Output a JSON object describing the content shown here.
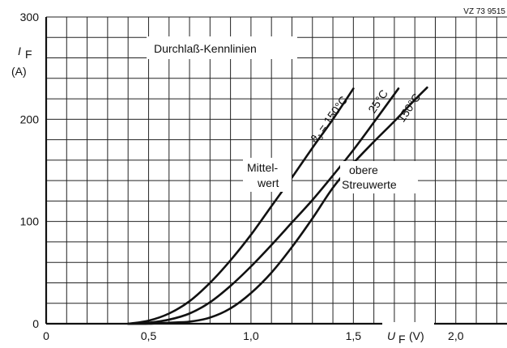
{
  "chart_data": {
    "type": "line",
    "title": "Durchlaß-Kennlinien",
    "figure_ref": "VZ 73 9515",
    "xlabel": {
      "symbol": "U",
      "sub": "F",
      "unit": "(V)"
    },
    "ylabel": {
      "symbol": "I",
      "sub": "F",
      "unit": "(A)"
    },
    "xlim": [
      0,
      2.25
    ],
    "ylim": [
      0,
      300
    ],
    "x_ticks": [
      {
        "value": 0,
        "label": "0"
      },
      {
        "value": 0.5,
        "label": "0,5"
      },
      {
        "value": 1.0,
        "label": "1,0"
      },
      {
        "value": 1.5,
        "label": "1,5"
      },
      {
        "value": 2.0,
        "label": "2,0"
      }
    ],
    "y_ticks": [
      {
        "value": 0,
        "label": "0"
      },
      {
        "value": 100,
        "label": "100"
      },
      {
        "value": 200,
        "label": "200"
      },
      {
        "value": 300,
        "label": "300"
      }
    ],
    "grid": {
      "major": true,
      "x_step": 0.1,
      "y_step": 20
    },
    "series": [
      {
        "key": "mittelwert",
        "x": [
          0.4,
          0.5,
          0.6,
          0.7,
          0.8,
          0.9,
          1.0,
          1.1,
          1.2,
          1.3,
          1.4,
          1.5
        ],
        "y": [
          0,
          3,
          10,
          22,
          40,
          62,
          87,
          115,
          143,
          172,
          200,
          230
        ]
      },
      {
        "key": "obere_25",
        "x": [
          0.4,
          0.5,
          0.6,
          0.7,
          0.8,
          0.9,
          1.0,
          1.1,
          1.2,
          1.3,
          1.4,
          1.5,
          1.6,
          1.72
        ],
        "y": [
          0,
          1,
          4,
          10,
          21,
          37,
          56,
          77,
          99,
          121,
          145,
          170,
          197,
          230
        ]
      },
      {
        "key": "obere_150",
        "x": [
          0.4,
          0.5,
          0.6,
          0.7,
          0.8,
          0.9,
          1.0,
          1.1,
          1.2,
          1.3,
          1.4,
          1.5,
          1.6,
          1.7,
          1.8,
          1.86
        ],
        "y": [
          0,
          0,
          1,
          2,
          6,
          15,
          30,
          50,
          75,
          103,
          133,
          157,
          178,
          198,
          219,
          231
        ]
      }
    ],
    "annotations": {
      "mittel1": "Mittel-",
      "mittel2": "wert",
      "obere1": "obere",
      "obere2": "Streuwerte",
      "lab_150_mittel": "ϑ",
      "lab_150_mittel_sub": "J",
      "lab_150_mittel_rest": " = 150°C",
      "lab_25": "25°C",
      "lab_150": "150°C"
    },
    "style": {
      "line_color": "#111111",
      "grid_color": "#222222",
      "background": "#ffffff"
    }
  }
}
